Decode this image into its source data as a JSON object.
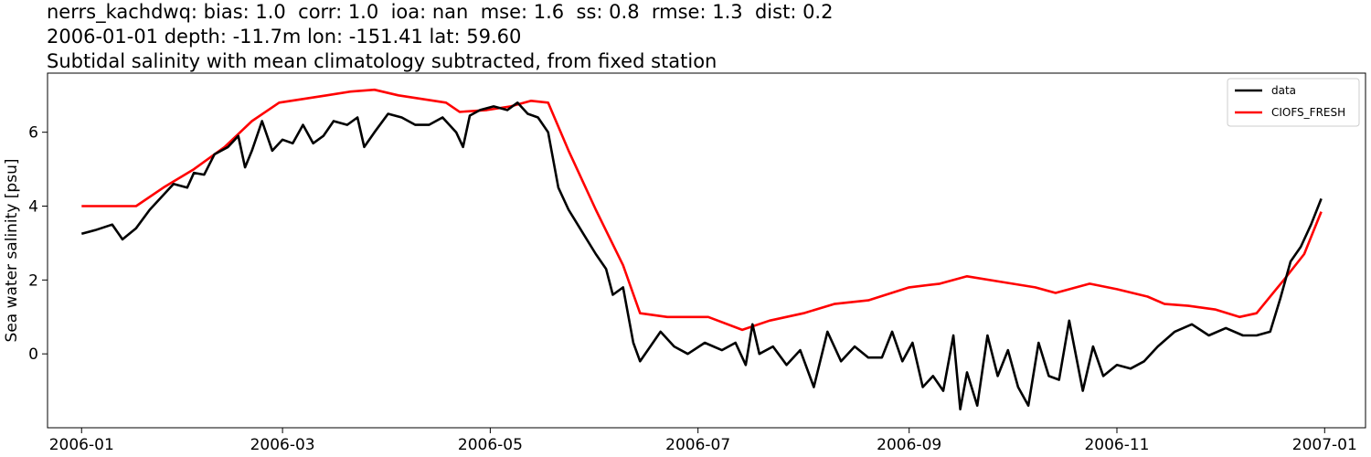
{
  "header": {
    "line1": "nerrs_kachdwq: bias: 1.0  corr: 1.0  ioa: nan  mse: 1.6  ss: 0.8  rmse: 1.3  dist: 0.2",
    "line2": "2006-01-01 depth: -11.7m lon: -151.41 lat: 59.60",
    "line3": "Subtidal salinity with mean climatology subtracted, from fixed station"
  },
  "chart_data": {
    "type": "line",
    "title": "Subtidal salinity with mean climatology subtracted, from fixed station",
    "xlabel": "",
    "ylabel": "Sea water salinity [psu]",
    "xlim": [
      "2005-12-22",
      "2007-01-13"
    ],
    "ylim": [
      -2.0,
      7.6
    ],
    "xticks": [
      "2006-01",
      "2006-03",
      "2006-05",
      "2006-07",
      "2006-09",
      "2006-11",
      "2007-01"
    ],
    "yticks": [
      0,
      2,
      4,
      6
    ],
    "legend": "top-right",
    "grid": false,
    "series": [
      {
        "name": "data",
        "color": "#000000",
        "points": [
          [
            "2006-01-01",
            3.25
          ],
          [
            "2006-01-05",
            3.35
          ],
          [
            "2006-01-10",
            3.5
          ],
          [
            "2006-01-13",
            3.1
          ],
          [
            "2006-01-17",
            3.4
          ],
          [
            "2006-01-21",
            3.9
          ],
          [
            "2006-01-25",
            4.3
          ],
          [
            "2006-01-28",
            4.6
          ],
          [
            "2006-02-01",
            4.5
          ],
          [
            "2006-02-03",
            4.9
          ],
          [
            "2006-02-06",
            4.85
          ],
          [
            "2006-02-09",
            5.4
          ],
          [
            "2006-02-13",
            5.6
          ],
          [
            "2006-02-16",
            5.9
          ],
          [
            "2006-02-18",
            5.05
          ],
          [
            "2006-02-20",
            5.5
          ],
          [
            "2006-02-23",
            6.3
          ],
          [
            "2006-02-26",
            5.5
          ],
          [
            "2006-03-01",
            5.8
          ],
          [
            "2006-03-04",
            5.7
          ],
          [
            "2006-03-07",
            6.2
          ],
          [
            "2006-03-10",
            5.7
          ],
          [
            "2006-03-13",
            5.9
          ],
          [
            "2006-03-16",
            6.3
          ],
          [
            "2006-03-20",
            6.2
          ],
          [
            "2006-03-23",
            6.4
          ],
          [
            "2006-03-25",
            5.6
          ],
          [
            "2006-03-28",
            6.0
          ],
          [
            "2006-04-01",
            6.5
          ],
          [
            "2006-04-05",
            6.4
          ],
          [
            "2006-04-09",
            6.2
          ],
          [
            "2006-04-13",
            6.2
          ],
          [
            "2006-04-17",
            6.4
          ],
          [
            "2006-04-21",
            6.0
          ],
          [
            "2006-04-23",
            5.6
          ],
          [
            "2006-04-25",
            6.45
          ],
          [
            "2006-04-28",
            6.6
          ],
          [
            "2006-05-02",
            6.7
          ],
          [
            "2006-05-06",
            6.6
          ],
          [
            "2006-05-09",
            6.8
          ],
          [
            "2006-05-12",
            6.5
          ],
          [
            "2006-05-15",
            6.4
          ],
          [
            "2006-05-18",
            6.0
          ],
          [
            "2006-05-21",
            4.5
          ],
          [
            "2006-05-24",
            3.9
          ],
          [
            "2006-05-28",
            3.3
          ],
          [
            "2006-06-01",
            2.7
          ],
          [
            "2006-06-04",
            2.3
          ],
          [
            "2006-06-06",
            1.6
          ],
          [
            "2006-06-09",
            1.8
          ],
          [
            "2006-06-12",
            0.3
          ],
          [
            "2006-06-14",
            -0.2
          ],
          [
            "2006-06-17",
            0.2
          ],
          [
            "2006-06-20",
            0.6
          ],
          [
            "2006-06-24",
            0.2
          ],
          [
            "2006-06-28",
            0.0
          ],
          [
            "2006-07-03",
            0.3
          ],
          [
            "2006-07-08",
            0.1
          ],
          [
            "2006-07-12",
            0.3
          ],
          [
            "2006-07-15",
            -0.3
          ],
          [
            "2006-07-17",
            0.8
          ],
          [
            "2006-07-19",
            0.0
          ],
          [
            "2006-07-23",
            0.2
          ],
          [
            "2006-07-27",
            -0.3
          ],
          [
            "2006-07-31",
            0.1
          ],
          [
            "2006-08-04",
            -0.9
          ],
          [
            "2006-08-08",
            0.6
          ],
          [
            "2006-08-12",
            -0.2
          ],
          [
            "2006-08-16",
            0.2
          ],
          [
            "2006-08-20",
            -0.1
          ],
          [
            "2006-08-24",
            -0.1
          ],
          [
            "2006-08-27",
            0.6
          ],
          [
            "2006-08-30",
            -0.2
          ],
          [
            "2006-09-02",
            0.3
          ],
          [
            "2006-09-05",
            -0.9
          ],
          [
            "2006-09-08",
            -0.6
          ],
          [
            "2006-09-11",
            -1.0
          ],
          [
            "2006-09-14",
            0.5
          ],
          [
            "2006-09-16",
            -1.5
          ],
          [
            "2006-09-18",
            -0.5
          ],
          [
            "2006-09-21",
            -1.4
          ],
          [
            "2006-09-24",
            0.5
          ],
          [
            "2006-09-27",
            -0.6
          ],
          [
            "2006-09-30",
            0.1
          ],
          [
            "2006-10-03",
            -0.9
          ],
          [
            "2006-10-06",
            -1.4
          ],
          [
            "2006-10-09",
            0.3
          ],
          [
            "2006-10-12",
            -0.6
          ],
          [
            "2006-10-15",
            -0.7
          ],
          [
            "2006-10-18",
            0.9
          ],
          [
            "2006-10-22",
            -1.0
          ],
          [
            "2006-10-25",
            0.2
          ],
          [
            "2006-10-28",
            -0.6
          ],
          [
            "2006-11-01",
            -0.3
          ],
          [
            "2006-11-05",
            -0.4
          ],
          [
            "2006-11-09",
            -0.2
          ],
          [
            "2006-11-13",
            0.2
          ],
          [
            "2006-11-18",
            0.6
          ],
          [
            "2006-11-23",
            0.8
          ],
          [
            "2006-11-28",
            0.5
          ],
          [
            "2006-12-03",
            0.7
          ],
          [
            "2006-12-08",
            0.5
          ],
          [
            "2006-12-12",
            0.5
          ],
          [
            "2006-12-16",
            0.6
          ],
          [
            "2006-12-19",
            1.5
          ],
          [
            "2006-12-22",
            2.5
          ],
          [
            "2006-12-25",
            2.9
          ],
          [
            "2006-12-28",
            3.5
          ],
          [
            "2006-12-31",
            4.2
          ]
        ]
      },
      {
        "name": "CIOFS_FRESH",
        "color": "#ff0000",
        "points": [
          [
            "2006-01-01",
            4.0
          ],
          [
            "2006-01-10",
            4.0
          ],
          [
            "2006-01-17",
            4.0
          ],
          [
            "2006-01-25",
            4.5
          ],
          [
            "2006-02-03",
            5.0
          ],
          [
            "2006-02-12",
            5.6
          ],
          [
            "2006-02-20",
            6.3
          ],
          [
            "2006-02-28",
            6.8
          ],
          [
            "2006-03-07",
            6.9
          ],
          [
            "2006-03-14",
            7.0
          ],
          [
            "2006-03-21",
            7.1
          ],
          [
            "2006-03-28",
            7.15
          ],
          [
            "2006-04-04",
            7.0
          ],
          [
            "2006-04-11",
            6.9
          ],
          [
            "2006-04-18",
            6.8
          ],
          [
            "2006-04-22",
            6.55
          ],
          [
            "2006-04-30",
            6.6
          ],
          [
            "2006-05-07",
            6.7
          ],
          [
            "2006-05-13",
            6.85
          ],
          [
            "2006-05-18",
            6.8
          ],
          [
            "2006-05-24",
            5.5
          ],
          [
            "2006-06-01",
            3.9
          ],
          [
            "2006-06-09",
            2.4
          ],
          [
            "2006-06-14",
            1.1
          ],
          [
            "2006-06-22",
            1.0
          ],
          [
            "2006-07-04",
            1.0
          ],
          [
            "2006-07-14",
            0.65
          ],
          [
            "2006-07-22",
            0.9
          ],
          [
            "2006-08-01",
            1.1
          ],
          [
            "2006-08-10",
            1.35
          ],
          [
            "2006-08-20",
            1.45
          ],
          [
            "2006-09-01",
            1.8
          ],
          [
            "2006-09-10",
            1.9
          ],
          [
            "2006-09-18",
            2.1
          ],
          [
            "2006-09-28",
            1.95
          ],
          [
            "2006-10-08",
            1.8
          ],
          [
            "2006-10-14",
            1.65
          ],
          [
            "2006-10-24",
            1.9
          ],
          [
            "2006-11-01",
            1.75
          ],
          [
            "2006-11-10",
            1.55
          ],
          [
            "2006-11-15",
            1.35
          ],
          [
            "2006-11-22",
            1.3
          ],
          [
            "2006-11-30",
            1.2
          ],
          [
            "2006-12-07",
            1.0
          ],
          [
            "2006-12-12",
            1.1
          ],
          [
            "2006-12-20",
            2.0
          ],
          [
            "2006-12-26",
            2.7
          ],
          [
            "2006-12-31",
            3.85
          ]
        ]
      }
    ]
  }
}
